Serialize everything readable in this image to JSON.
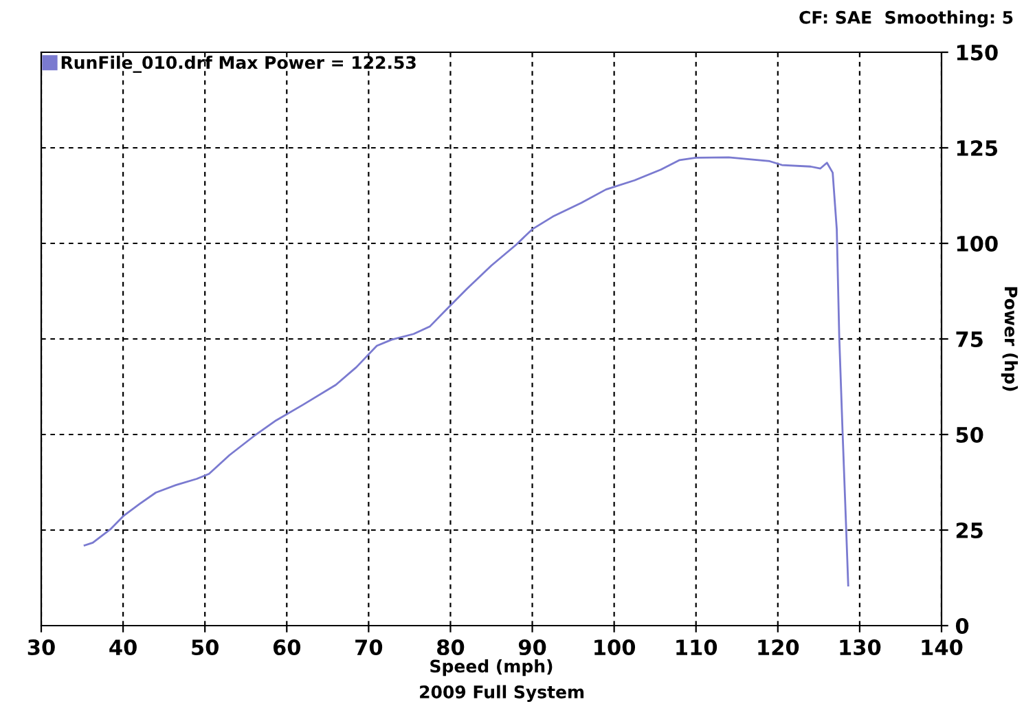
{
  "chart_data": {
    "type": "line",
    "xlabel": "Speed (mph)",
    "ylabel": "Power (hp)",
    "annotations": [
      "CF: SAE  Smoothing: 5",
      "2009 Full System"
    ],
    "series": [
      {
        "name": "RunFile_010.drf Max Power = 122.53",
        "color": "#7a7ad0",
        "x": [
          35.3,
          36.3,
          38.5,
          40,
          42,
          44,
          46.5,
          49,
          50.5,
          53,
          56,
          58.7,
          62,
          66,
          68.5,
          71,
          72.8,
          75.5,
          77.5,
          79.5,
          82,
          85,
          88,
          90,
          92.5,
          96,
          99,
          102.5,
          105.7,
          108,
          110,
          114,
          119,
          120.5,
          124,
          125.2,
          126,
          126.7,
          127.2,
          127.5,
          127.9,
          128.3,
          128.6
        ],
        "values": [
          21.0,
          21.7,
          25.3,
          28.6,
          31.8,
          34.8,
          36.8,
          38.4,
          39.7,
          44.6,
          49.6,
          53.7,
          57.8,
          63,
          67.6,
          73.2,
          74.8,
          76.3,
          78.3,
          82.7,
          88.1,
          94.2,
          99.6,
          103.7,
          107,
          110.6,
          114.1,
          116.5,
          119.3,
          121.8,
          122.4,
          122.5,
          121.5,
          120.5,
          120.1,
          119.6,
          121.1,
          118.5,
          103.7,
          75.8,
          51.2,
          28.2,
          10.5
        ]
      }
    ],
    "xlim": [
      30,
      140
    ],
    "xticks": [
      30,
      40,
      50,
      60,
      70,
      80,
      90,
      100,
      110,
      120,
      130,
      140
    ],
    "ylim": [
      0,
      150
    ],
    "yticks": [
      0,
      25,
      50,
      75,
      100,
      125,
      150
    ],
    "grid": true,
    "legend": "top left",
    "marker": "none",
    "line_style": "solid"
  }
}
